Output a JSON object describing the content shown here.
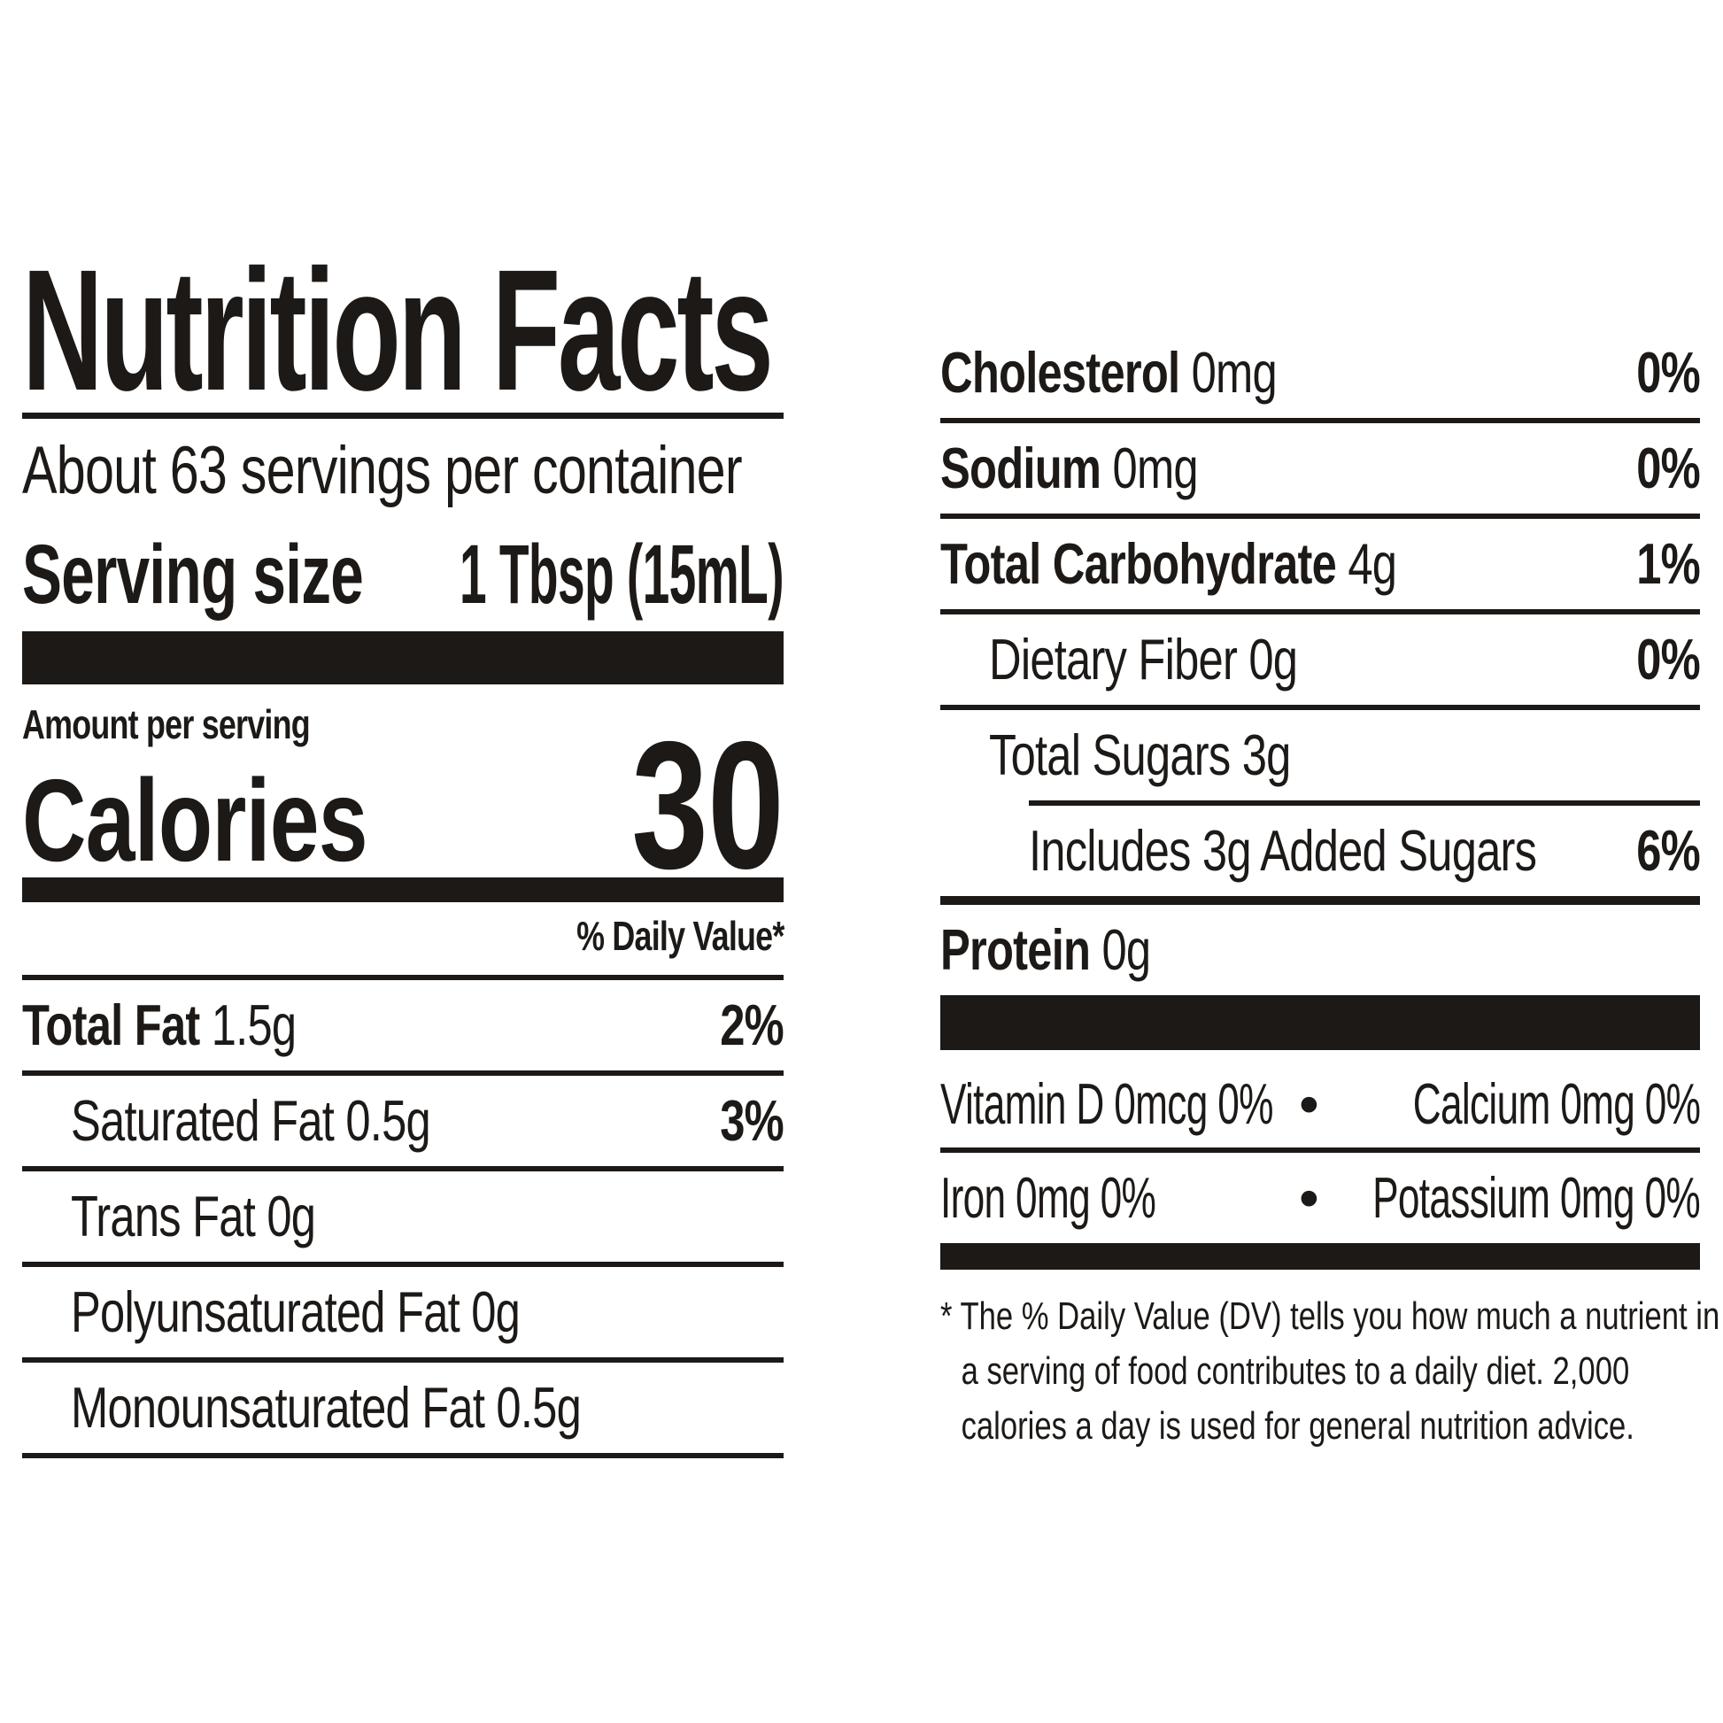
{
  "label": {
    "title": "Nutrition Facts",
    "servings_per_container": "About 63 servings per container",
    "serving_size_label": "Serving size",
    "serving_size_value": "1 Tbsp (15mL)",
    "amount_per_serving": "Amount per serving",
    "calories_label": "Calories",
    "calories_value": "30",
    "daily_value_header": "% Daily Value*",
    "left_rows": [
      {
        "bold": "Total Fat",
        "rest": " 1.5g",
        "pct": "2%"
      },
      {
        "rest": "Saturated Fat 0.5g",
        "pct": "3%"
      },
      {
        "rest": "Trans Fat 0g"
      },
      {
        "rest": "Polyunsaturated Fat 0g"
      },
      {
        "rest": "Monounsaturated Fat 0.5g"
      }
    ],
    "right_rows": [
      {
        "bold": "Cholesterol",
        "rest": " 0mg",
        "pct": "0%"
      },
      {
        "bold": "Sodium",
        "rest": " 0mg",
        "pct": "0%"
      },
      {
        "bold": "Total Carbohydrate",
        "rest": " 4g",
        "pct": "1%"
      },
      {
        "rest": "Dietary Fiber 0g",
        "pct": "0%"
      },
      {
        "rest": "Total Sugars 3g"
      },
      {
        "rest": "Includes 3g Added Sugars",
        "pct": "6%"
      },
      {
        "bold": "Protein",
        "rest": " 0g"
      }
    ],
    "micronutrients": {
      "bullet": "•",
      "row1_left": "Vitamin D 0mcg 0%",
      "row1_right": "Calcium 0mg 0%",
      "row2_left": "Iron 0mg 0%",
      "row2_right": "Potassium 0mg 0%"
    },
    "footnote": "* The % Daily Value (DV) tells you how much a nutrient in a serving of food contributes to a daily diet. 2,000 calories a day is used for general nutrition advice."
  },
  "colors": {
    "ink": "#1c1917",
    "background": "#ffffff"
  }
}
